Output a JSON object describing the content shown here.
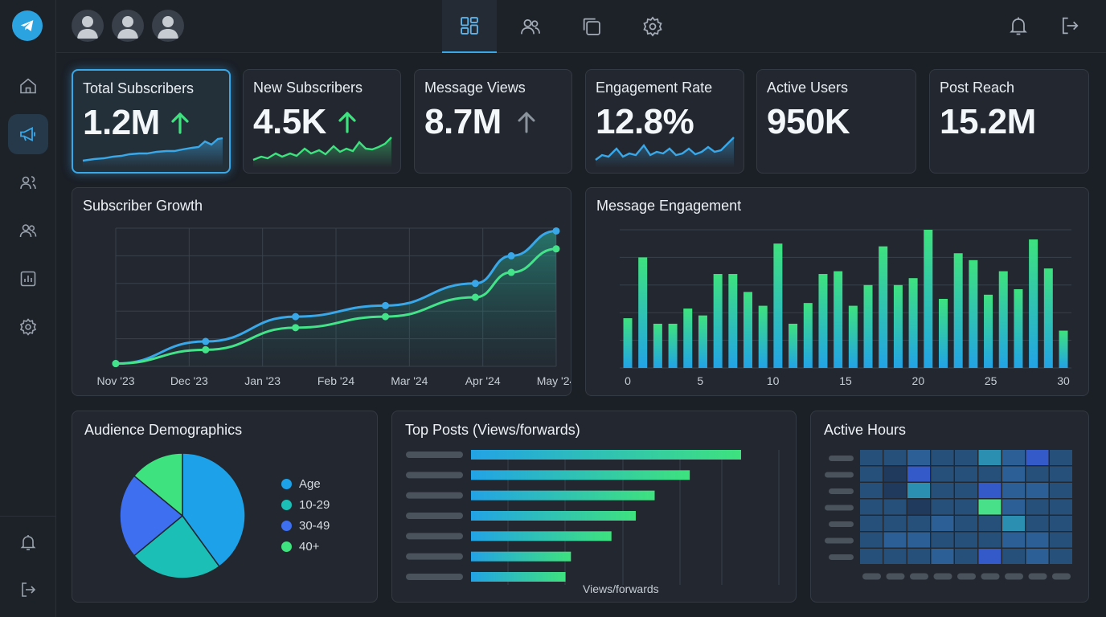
{
  "stats": [
    {
      "label": "Total Subscribers",
      "value": "1.2M",
      "trend": "up"
    },
    {
      "label": "New Subscribers",
      "value": "4.5K",
      "trend": "up"
    },
    {
      "label": "Message Views",
      "value": "8.7M",
      "trend": "up-neutral"
    },
    {
      "label": "Engagement Rate",
      "value": "12.8%",
      "trend": "none"
    },
    {
      "label": "Active Users",
      "value": "950K",
      "trend": "none"
    },
    {
      "label": "Post Reach",
      "value": "15.2M",
      "trend": "none"
    }
  ],
  "colors": {
    "accent": "#3aa8e8",
    "green": "#3ee27e",
    "up_arrow": "#3ee27e",
    "neutral_arrow": "#8b939c",
    "blue_series": "#3aa8e8",
    "green_series": "#44e38a"
  },
  "icons": {
    "sidebar": [
      "home-icon",
      "megaphone-icon",
      "contacts-icon",
      "users-icon",
      "chart-icon",
      "settings-icon",
      "bell-icon",
      "logout-icon"
    ],
    "top_tabs": [
      "dashboard-icon",
      "users-icon",
      "copy-icon",
      "settings-icon"
    ],
    "top_right": [
      "bell-icon",
      "logout-icon"
    ]
  },
  "chart_data": [
    {
      "type": "line",
      "title": "Subscriber Growth",
      "categories": [
        "Nov '23",
        "Dec '23",
        "Jan '23",
        "Feb '24",
        "Mar '24",
        "Apr '24",
        "May '24"
      ],
      "ylim": [
        0,
        100
      ],
      "grid": true,
      "series": [
        {
          "color": "#3aa8e8",
          "points": [
            [
              0,
              2
            ],
            [
              0.5,
              18
            ],
            [
              1,
              36
            ],
            [
              1.5,
              44
            ],
            [
              2,
              60
            ],
            [
              2.2,
              80
            ],
            [
              2.45,
              98
            ]
          ]
        },
        {
          "color": "#44e38a",
          "points": [
            [
              0,
              2
            ],
            [
              0.5,
              12
            ],
            [
              1,
              28
            ],
            [
              1.5,
              36
            ],
            [
              2,
              50
            ],
            [
              2.2,
              68
            ],
            [
              2.45,
              85
            ]
          ]
        }
      ]
    },
    {
      "type": "bar",
      "title": "Message Engagement",
      "x_ticks": [
        0,
        5,
        10,
        15,
        20,
        25,
        30
      ],
      "ylim": [
        0,
        100
      ],
      "grid": true,
      "values": [
        36,
        80,
        32,
        32,
        43,
        38,
        68,
        68,
        55,
        45,
        90,
        32,
        47,
        68,
        70,
        45,
        60,
        88,
        60,
        65,
        100,
        50,
        83,
        78,
        53,
        70,
        57,
        93,
        72,
        27
      ]
    },
    {
      "type": "pie",
      "title": "Audience Demographics",
      "legend": [
        "Age",
        "10-29",
        "30-49",
        "40+"
      ],
      "colors": [
        "#1da1e8",
        "#1cbfb6",
        "#3d6ff0",
        "#3ee27e"
      ],
      "values": [
        40,
        24,
        22,
        14
      ]
    },
    {
      "type": "bar",
      "orientation": "horizontal",
      "title": "Top Posts (Views/forwards)",
      "xlabel": "Views/forwards",
      "values": [
        100,
        81,
        68,
        61,
        52,
        37,
        35
      ]
    },
    {
      "type": "heatmap",
      "title": "Active Hours",
      "rows": 7,
      "cols": 9,
      "values": [
        [
          2,
          2,
          3,
          2,
          2,
          5,
          3,
          4,
          2
        ],
        [
          2,
          1,
          4,
          2,
          2,
          2,
          3,
          2,
          2
        ],
        [
          2,
          1,
          5,
          2,
          2,
          4,
          3,
          3,
          2
        ],
        [
          2,
          2,
          1,
          2,
          2,
          6,
          3,
          2,
          2
        ],
        [
          2,
          2,
          2,
          3,
          2,
          2,
          5,
          2,
          2
        ],
        [
          2,
          3,
          3,
          2,
          2,
          2,
          3,
          3,
          2
        ],
        [
          2,
          2,
          2,
          3,
          2,
          4,
          2,
          3,
          2
        ]
      ]
    }
  ]
}
